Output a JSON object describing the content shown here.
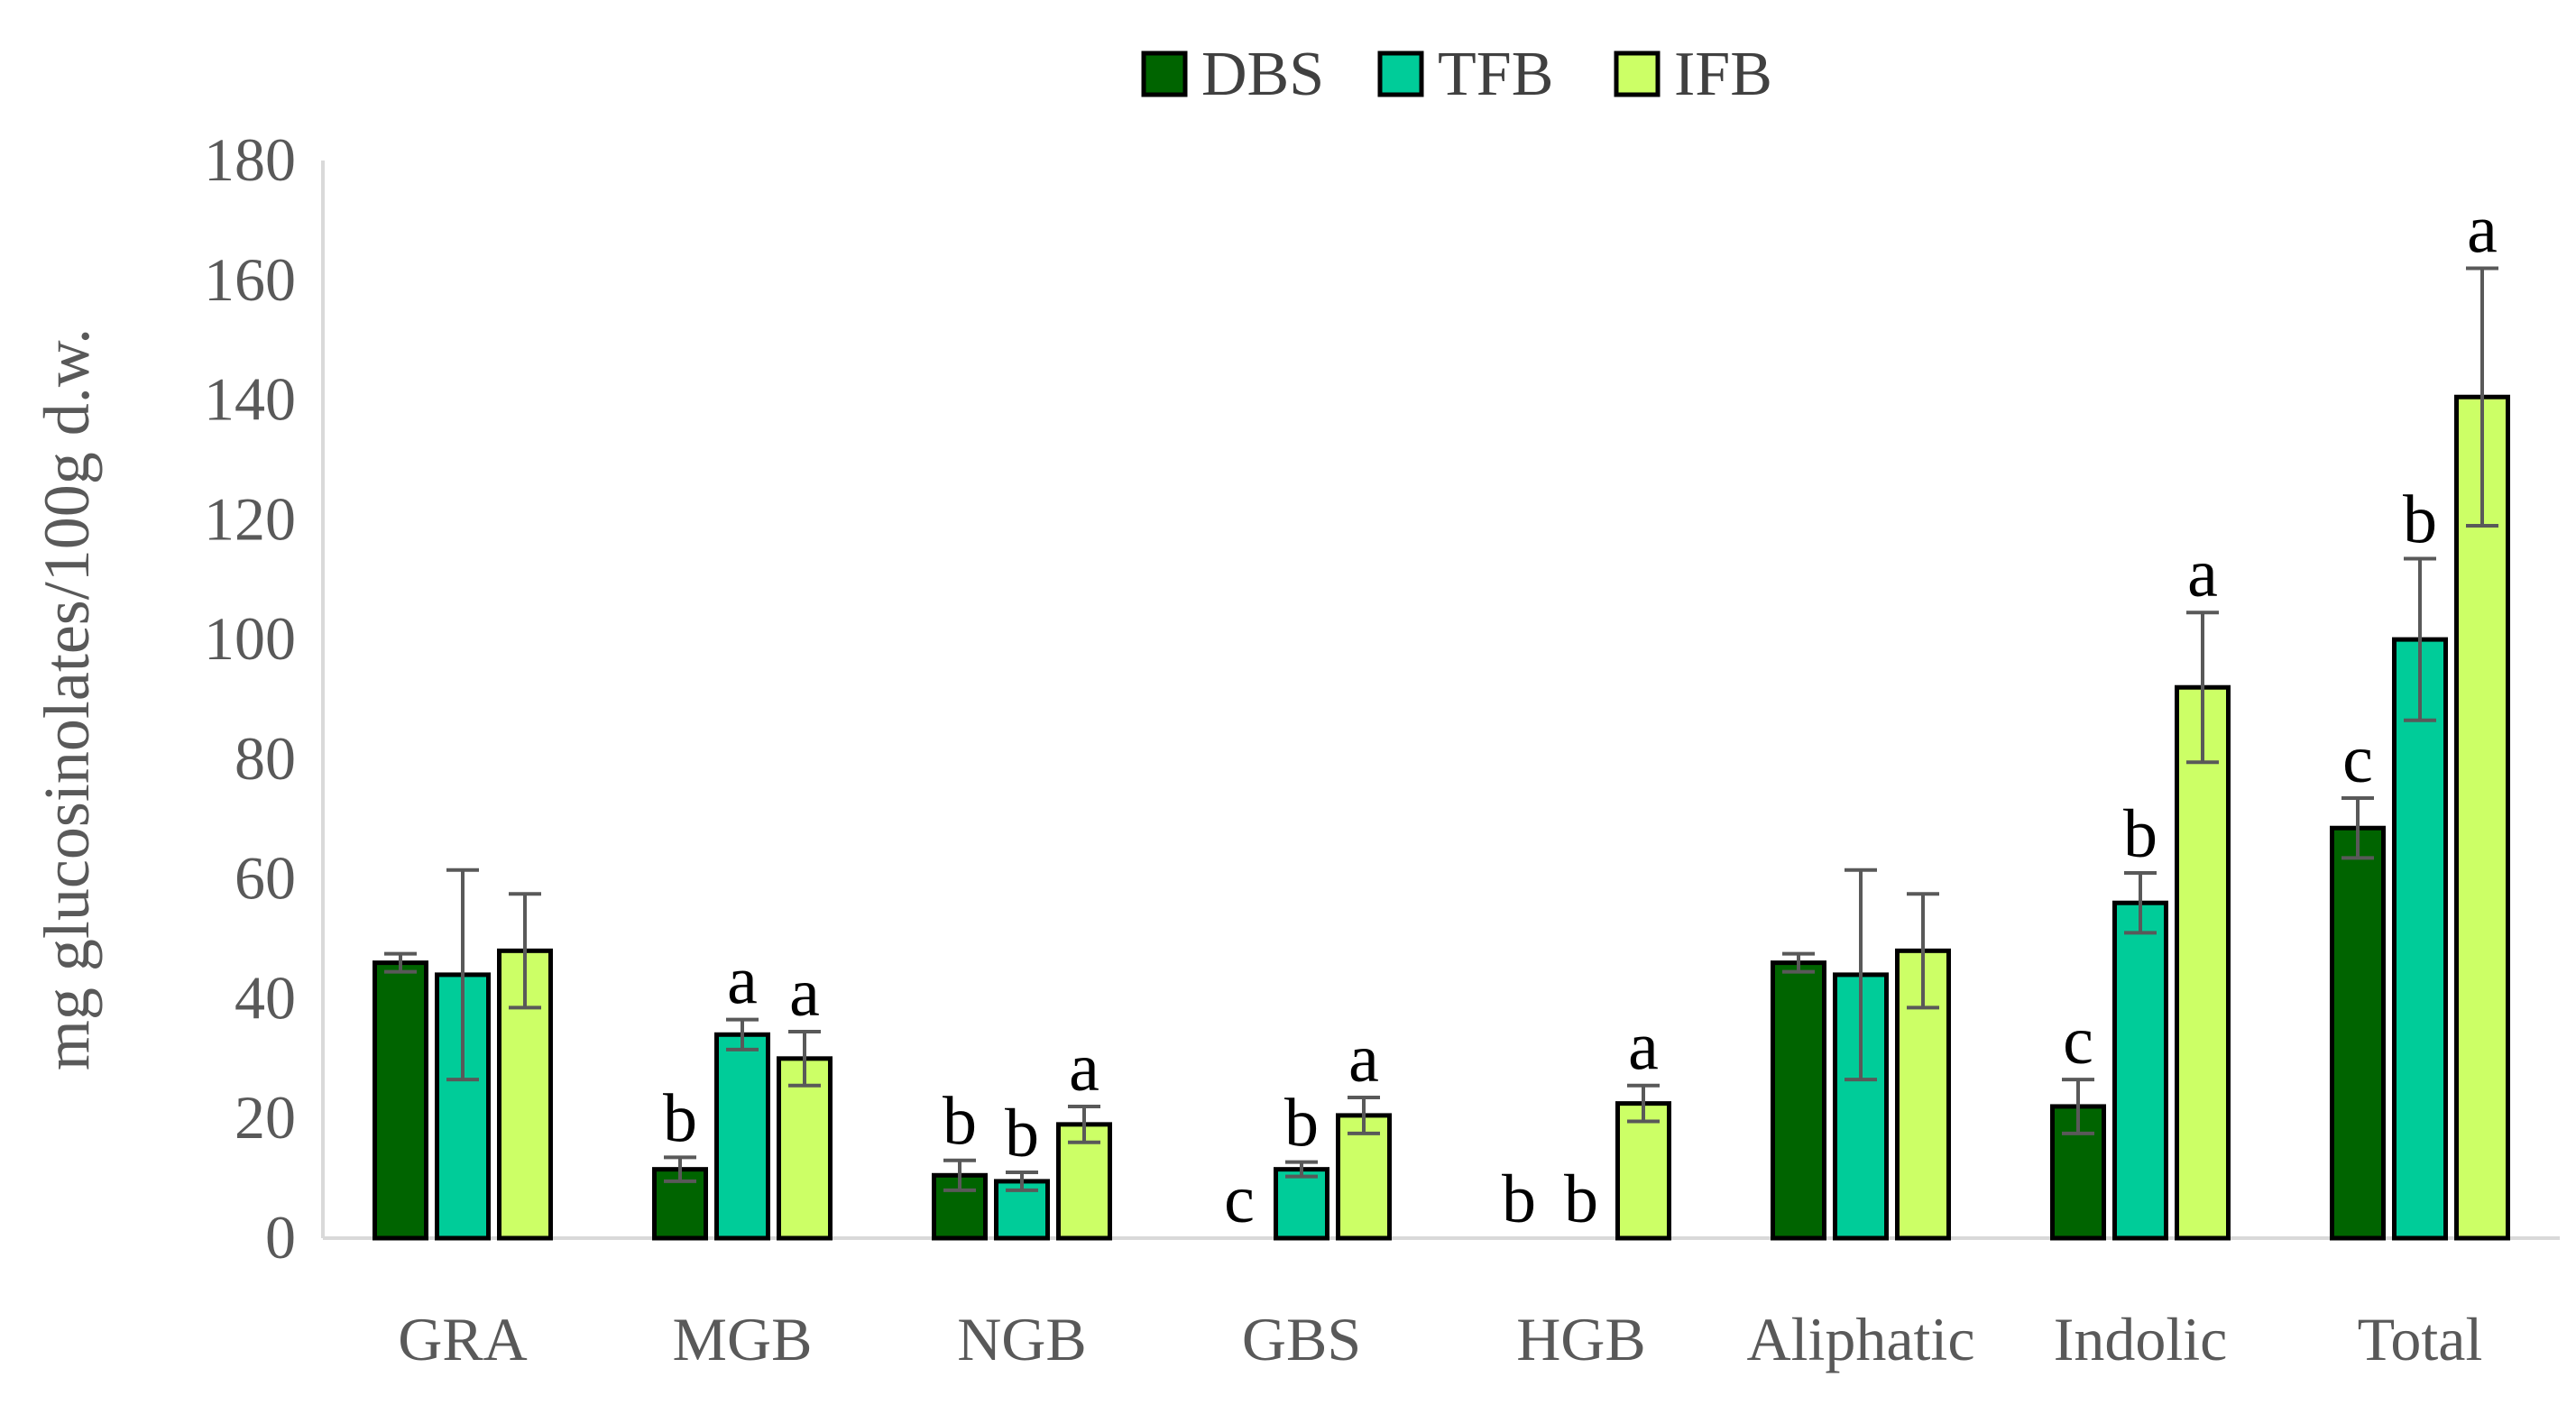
{
  "chart_data": {
    "type": "bar",
    "title": "",
    "xlabel": "",
    "ylabel": "mg glucosinolates/100g d.w.",
    "ylim": [
      0,
      180
    ],
    "yticks": [
      0,
      20,
      40,
      60,
      80,
      100,
      120,
      140,
      160,
      180
    ],
    "legend_position": "top-center",
    "categories": [
      "GRA",
      "MGB",
      "NGB",
      "GBS",
      "HGB",
      "Aliphatic",
      "Indolic",
      "Total"
    ],
    "series": [
      {
        "name": "DBS",
        "color": "#006400",
        "values": [
          46,
          11.5,
          10.5,
          0,
          0,
          46,
          22,
          68.5
        ],
        "errors": [
          1.5,
          2,
          2.5,
          0,
          0,
          1.5,
          4.5,
          5
        ],
        "labels": [
          "",
          "b",
          "b",
          "c",
          "b",
          "",
          "c",
          "c"
        ]
      },
      {
        "name": "TFB",
        "color": "#00CC99",
        "values": [
          44,
          34,
          9.5,
          11.5,
          0,
          44,
          56,
          100
        ],
        "errors": [
          17.5,
          2.5,
          1.5,
          1.2,
          0,
          17.5,
          5,
          13.5
        ],
        "labels": [
          "",
          "a",
          "b",
          "b",
          "b",
          "",
          "b",
          "b"
        ]
      },
      {
        "name": "IFB",
        "color": "#CCFF66",
        "values": [
          48,
          30,
          19,
          20.5,
          22.5,
          48,
          92,
          140.5
        ],
        "errors": [
          9.5,
          4.5,
          3,
          3,
          3,
          9.5,
          12.5,
          21.5
        ],
        "labels": [
          "",
          "a",
          "a",
          "a",
          "a",
          "",
          "a",
          "a"
        ]
      }
    ]
  }
}
